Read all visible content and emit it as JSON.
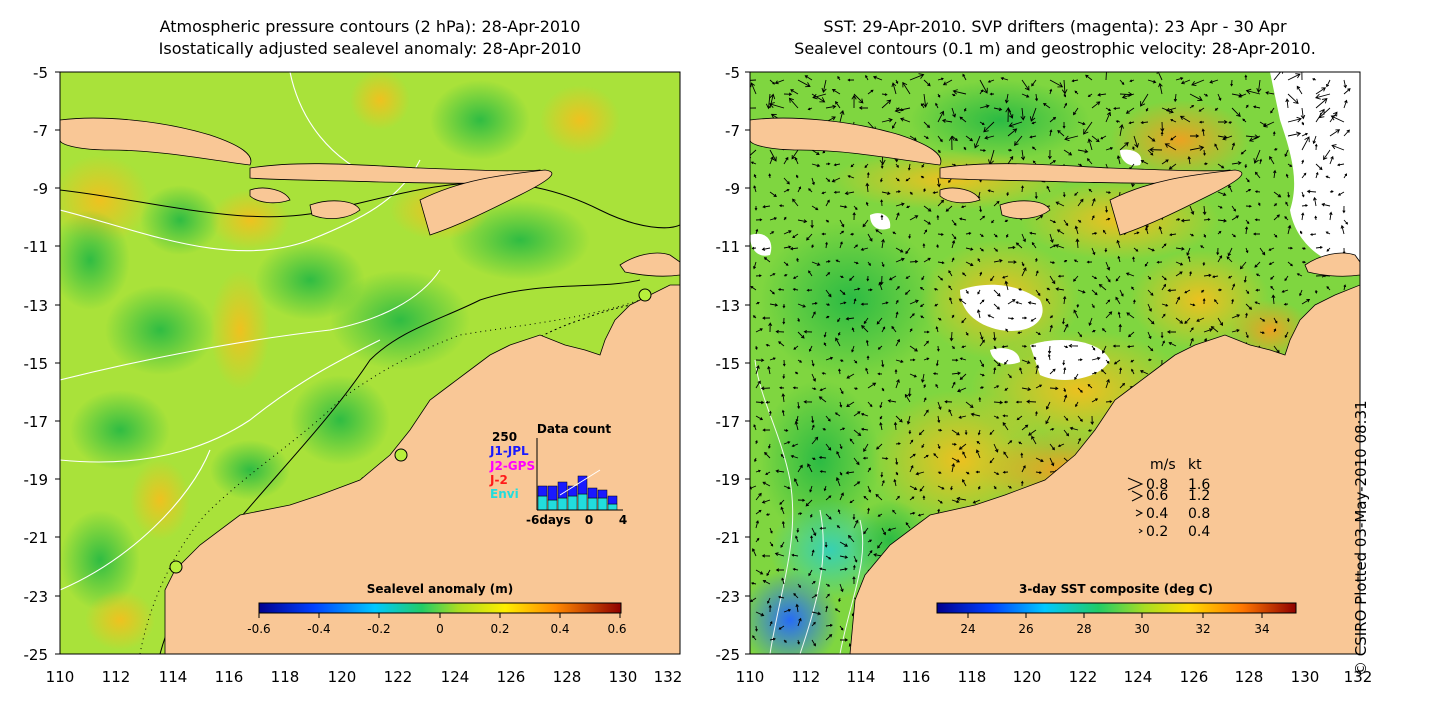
{
  "left_panel": {
    "title_line1": "Atmospheric pressure contours (2 hPa): 28-Apr-2010",
    "title_line2": "Isostatically adjusted sealevel anomaly: 28-Apr-2010",
    "y_ticks": [
      "-5",
      "-7",
      "-9",
      "-11",
      "-13",
      "-15",
      "-17",
      "-19",
      "-21",
      "-23",
      "-25"
    ],
    "x_ticks": [
      "110",
      "112",
      "114",
      "116",
      "118",
      "120",
      "122",
      "124",
      "126",
      "128",
      "130",
      "132"
    ],
    "colorbar": {
      "label": "Sealevel anomaly (m)",
      "ticks": [
        "-0.6",
        "-0.4",
        "-0.2",
        "0",
        "0.2",
        "0.4",
        "0.6"
      ]
    },
    "inset": {
      "title": "Data count",
      "ymax_label": "250",
      "legend": [
        {
          "label": "J1-JPL",
          "color": "#1a1aff"
        },
        {
          "label": "J2-GPS",
          "color": "#ff00ff"
        },
        {
          "label": "J-2",
          "color": "#ff1a1a"
        },
        {
          "label": "Envi",
          "color": "#22dddd"
        }
      ],
      "x_label_left": "-6days",
      "x_label_mid": "0",
      "x_label_right": "4"
    }
  },
  "right_panel": {
    "title_line1": "SST: 29-Apr-2010. SVP drifters (magenta): 23 Apr - 30 Apr",
    "title_line2": "Sealevel contours (0.1 m) and geostrophic velocity: 28-Apr-2010.",
    "y_ticks": [
      "-5",
      "-7",
      "-9",
      "-11",
      "-13",
      "-15",
      "-17",
      "-19",
      "-21",
      "-23",
      "-25"
    ],
    "x_ticks": [
      "110",
      "112",
      "114",
      "116",
      "118",
      "120",
      "122",
      "124",
      "126",
      "128",
      "130",
      "132"
    ],
    "colorbar": {
      "label": "3-day SST composite (deg C)",
      "ticks": [
        "24",
        "26",
        "28",
        "30",
        "32",
        "34"
      ]
    },
    "velocity_legend": {
      "header_ms": "m/s",
      "header_kt": "kt",
      "rows": [
        {
          "ms": "0.8",
          "kt": "1.6"
        },
        {
          "ms": "0.6",
          "kt": "1.2"
        },
        {
          "ms": "0.4",
          "kt": "0.8"
        },
        {
          "ms": "0.2",
          "kt": "0.4"
        }
      ]
    }
  },
  "footer": {
    "copyright": "© CSIRO Plotted 03-May-2010 08:31"
  },
  "colors": {
    "land": "#f9c796",
    "ocean_anomaly_base": "#a9e23a",
    "ocean_sst_base": "#7fd640",
    "no_data": "#ffffff"
  }
}
